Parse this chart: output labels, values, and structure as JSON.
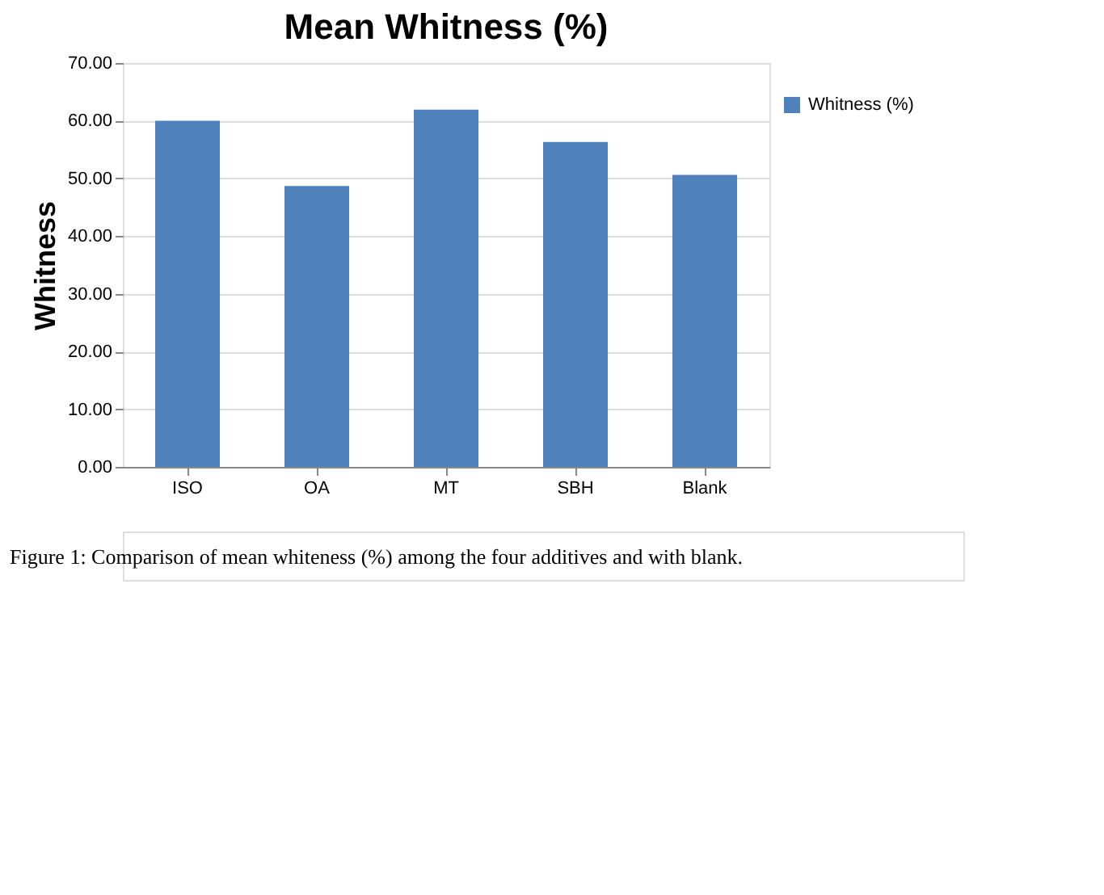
{
  "chart_data": {
    "type": "bar",
    "title": "Mean Whitness (%)",
    "ylabel": "Whitness",
    "categories": [
      "ISO",
      "OA",
      "MT",
      "SBH",
      "Blank"
    ],
    "series": [
      {
        "name": "Whitness (%)",
        "color": "#4f81bd",
        "values": [
          60.0,
          48.7,
          61.9,
          56.3,
          50.6
        ]
      }
    ],
    "ylim": [
      0,
      70
    ],
    "yticks": [
      {
        "value": 0,
        "label": "0.00"
      },
      {
        "value": 10,
        "label": "10.00"
      },
      {
        "value": 20,
        "label": "20.00"
      },
      {
        "value": 30,
        "label": "30.00"
      },
      {
        "value": 40,
        "label": "40.00"
      },
      {
        "value": 50,
        "label": "50.00"
      },
      {
        "value": 60,
        "label": "60.00"
      },
      {
        "value": 70,
        "label": "70.00"
      }
    ],
    "grid": "y",
    "legend": "top right",
    "annotations": [
      "Figure 1: Comparison of mean whiteness (%) among the four additives and with blank."
    ]
  }
}
